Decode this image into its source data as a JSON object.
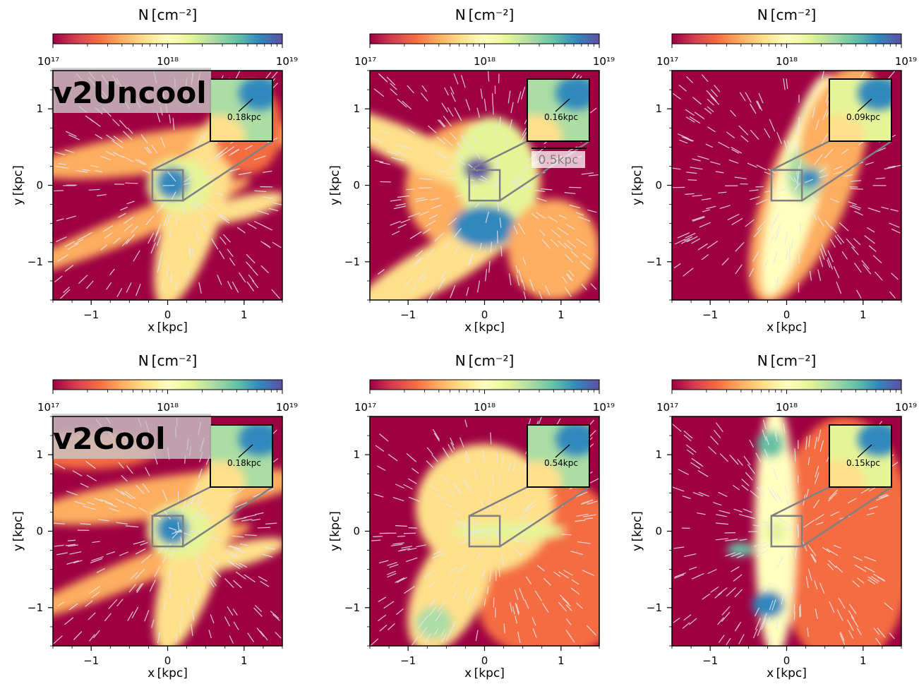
{
  "colorbar": {
    "label": "N [cm⁻²]",
    "tick_labels": [
      "10¹⁷",
      "10¹⁸",
      "10¹⁹"
    ],
    "scale": "log",
    "range": [
      1e+17,
      1e+19
    ],
    "colormap": "Spectral",
    "colors": [
      "#9e0142",
      "#d53e4f",
      "#f46d43",
      "#fdae61",
      "#fee08b",
      "#ffffbf",
      "#e6f598",
      "#abdda4",
      "#66c2a5",
      "#3288bd",
      "#5e4fa2"
    ]
  },
  "row_labels": [
    "v2Uncool",
    "v2Cool"
  ],
  "chart_data": [
    {
      "type": "heatmap",
      "row": 0,
      "col": 0,
      "label": "v2Uncool",
      "inset_scale": "0.18kpc",
      "xlabel": "x [kpc]",
      "ylabel": "y [kpc]",
      "xlim": [
        -1.5,
        1.5
      ],
      "ylim": [
        -1.5,
        1.5
      ],
      "xticks": [
        "−1",
        "0",
        "1"
      ],
      "yticks": [
        "1",
        "0",
        "−1"
      ],
      "zoom_box": [
        -0.2,
        0.2,
        -0.2,
        0.2
      ]
    },
    {
      "type": "heatmap",
      "row": 0,
      "col": 1,
      "inset_scale": "0.16kpc",
      "scale_bar": "0.5kpc",
      "xlabel": "x [kpc]",
      "ylabel": "y [kpc]",
      "xlim": [
        -1.5,
        1.5
      ],
      "ylim": [
        -1.5,
        1.5
      ],
      "xticks": [
        "−1",
        "0",
        "1"
      ],
      "yticks": [
        "1",
        "0",
        "−1"
      ],
      "zoom_box": [
        -0.2,
        0.2,
        -0.2,
        0.2
      ]
    },
    {
      "type": "heatmap",
      "row": 0,
      "col": 2,
      "inset_scale": "0.09kpc",
      "xlabel": "x [kpc]",
      "ylabel": "y [kpc]",
      "xlim": [
        -1.5,
        1.5
      ],
      "ylim": [
        -1.5,
        1.5
      ],
      "xticks": [
        "−1",
        "0",
        "1"
      ],
      "yticks": [
        "1",
        "0",
        "−1"
      ],
      "zoom_box": [
        -0.2,
        0.2,
        -0.2,
        0.2
      ]
    },
    {
      "type": "heatmap",
      "row": 1,
      "col": 0,
      "label": "v2Cool",
      "inset_scale": "0.18kpc",
      "xlabel": "x [kpc]",
      "ylabel": "y [kpc]",
      "xlim": [
        -1.5,
        1.5
      ],
      "ylim": [
        -1.5,
        1.5
      ],
      "xticks": [
        "−1",
        "0",
        "1"
      ],
      "yticks": [
        "1",
        "0",
        "−1"
      ],
      "zoom_box": [
        -0.2,
        0.2,
        -0.2,
        0.2
      ]
    },
    {
      "type": "heatmap",
      "row": 1,
      "col": 1,
      "inset_scale": "0.54kpc",
      "xlabel": "x [kpc]",
      "ylabel": "y [kpc]",
      "xlim": [
        -1.5,
        1.5
      ],
      "ylim": [
        -1.5,
        1.5
      ],
      "xticks": [
        "−1",
        "0",
        "1"
      ],
      "yticks": [
        "1",
        "0",
        "−1"
      ],
      "zoom_box": [
        -0.2,
        0.2,
        -0.2,
        0.2
      ]
    },
    {
      "type": "heatmap",
      "row": 1,
      "col": 2,
      "inset_scale": "0.15kpc",
      "xlabel": "x [kpc]",
      "ylabel": "y [kpc]",
      "xlim": [
        -1.5,
        1.5
      ],
      "ylim": [
        -1.5,
        1.5
      ],
      "xticks": [
        "−1",
        "0",
        "1"
      ],
      "yticks": [
        "1",
        "0",
        "−1"
      ],
      "zoom_box": [
        -0.2,
        0.2,
        -0.2,
        0.2
      ]
    }
  ]
}
